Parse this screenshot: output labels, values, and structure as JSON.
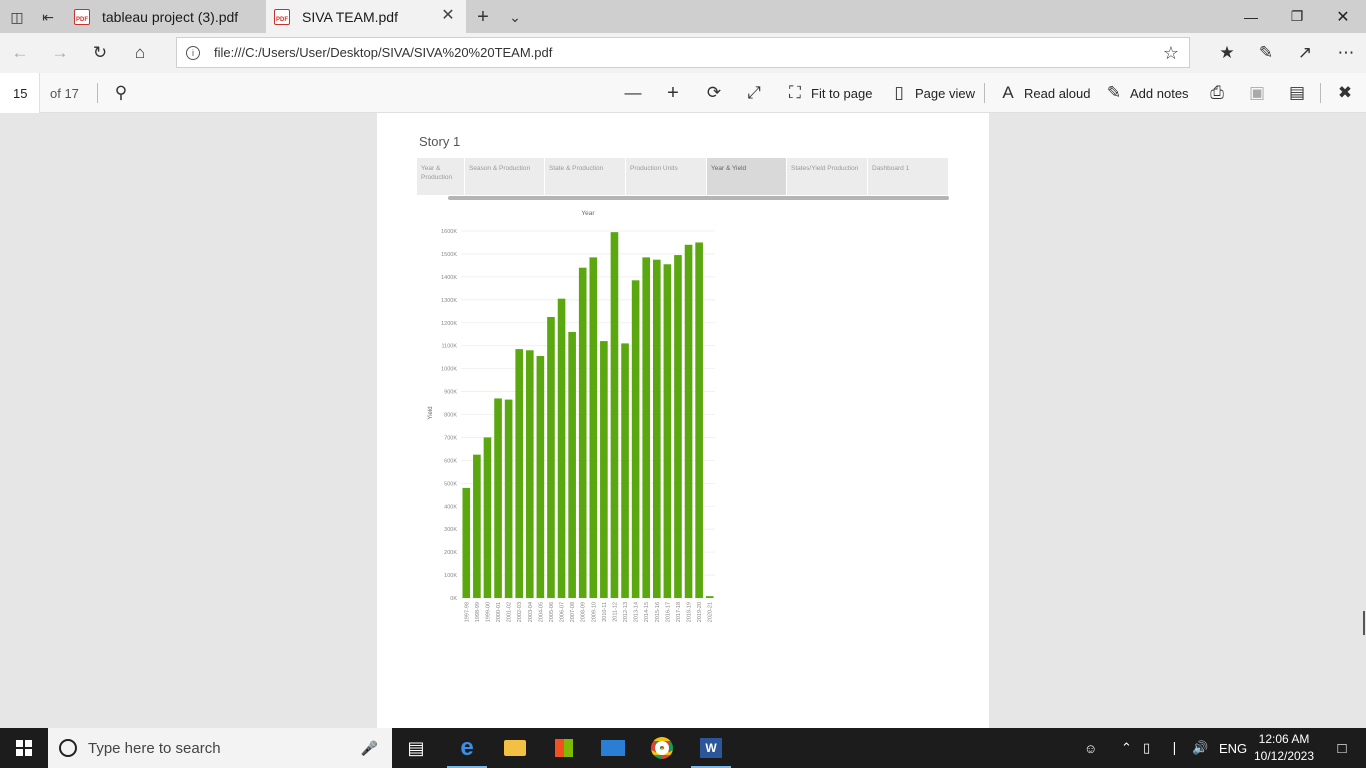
{
  "browser": {
    "tabs": [
      {
        "label": "tableau project (3).pdf",
        "active": false
      },
      {
        "label": "SIVA TEAM.pdf",
        "active": true
      }
    ],
    "address": "file:///C:/Users/User/Desktop/SIVA/SIVA%20%20TEAM.pdf"
  },
  "pdf_toolbar": {
    "page": "15",
    "of_pages": "of 17",
    "fit_to_page": "Fit to page",
    "page_view": "Page view",
    "read_aloud": "Read aloud",
    "add_notes": "Add notes"
  },
  "story": {
    "title": "Story 1",
    "tabs": [
      {
        "label": "Year & Production",
        "active": false
      },
      {
        "label": "Season & Production",
        "active": false
      },
      {
        "label": "State & Production",
        "active": false
      },
      {
        "label": "Production Units",
        "active": false
      },
      {
        "label": "Year & Yield",
        "active": true
      },
      {
        "label": "States/Yield Production",
        "active": false
      },
      {
        "label": "Dashboard 1",
        "active": false
      }
    ]
  },
  "chart_data": {
    "type": "bar",
    "title": "Year",
    "xlabel": "",
    "ylabel": "Yield",
    "bar_color": "#5aa70f",
    "ylim": [
      0,
      1600000
    ],
    "y_ticks": [
      "0K",
      "100K",
      "200K",
      "300K",
      "400K",
      "500K",
      "600K",
      "700K",
      "800K",
      "900K",
      "1000K",
      "1100K",
      "1200K",
      "1300K",
      "1400K",
      "1500K",
      "1600K"
    ],
    "categories": [
      "1997-98",
      "1998-99",
      "1999-00",
      "2000-01",
      "2001-02",
      "2002-03",
      "2003-04",
      "2004-05",
      "2005-06",
      "2006-07",
      "2007-08",
      "2008-09",
      "2009-10",
      "2010-11",
      "2011-12",
      "2012-13",
      "2013-14",
      "2014-15",
      "2015-16",
      "2016-17",
      "2017-18",
      "2018-19",
      "2019-20",
      "2020-21"
    ],
    "values": [
      480000,
      625000,
      700000,
      870000,
      865000,
      1085000,
      1080000,
      1055000,
      1225000,
      1305000,
      1160000,
      1440000,
      1485000,
      1120000,
      1595000,
      1110000,
      1385000,
      1485000,
      1475000,
      1455000,
      1495000,
      1540000,
      1550000,
      8000
    ],
    "grid": true
  },
  "taskbar": {
    "search_placeholder": "Type here to search",
    "language": "ENG",
    "time": "12:06 AM",
    "date": "10/12/2023"
  }
}
